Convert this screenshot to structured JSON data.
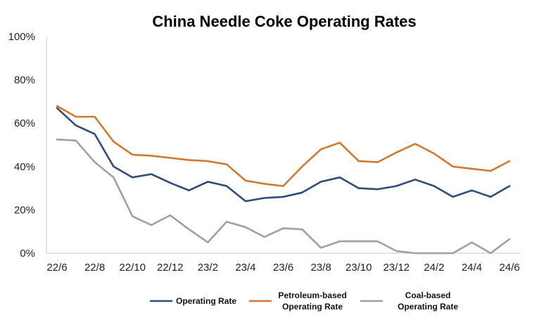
{
  "chart_data": {
    "type": "line",
    "title": "China Needle Coke Operating Rates",
    "xlabel": "",
    "ylabel": "",
    "ylim": [
      0,
      100
    ],
    "y_ticks": [
      "0%",
      "20%",
      "40%",
      "60%",
      "80%",
      "100%"
    ],
    "y_tick_values": [
      0,
      20,
      40,
      60,
      80,
      100
    ],
    "x": [
      "22/6",
      "22/7",
      "22/8",
      "22/9",
      "22/10",
      "22/11",
      "22/12",
      "23/1",
      "23/2",
      "23/3",
      "23/4",
      "23/5",
      "23/6",
      "23/7",
      "23/8",
      "23/9",
      "23/10",
      "23/11",
      "23/12",
      "24/1",
      "24/2",
      "24/3",
      "24/4",
      "24/5",
      "24/6"
    ],
    "x_tick_labels": [
      "22/6",
      "22/8",
      "22/10",
      "22/12",
      "23/2",
      "23/4",
      "23/6",
      "23/8",
      "23/10",
      "23/12",
      "24/2",
      "24/4",
      "24/6"
    ],
    "grid": false,
    "legend_position": "bottom",
    "series": [
      {
        "name": "Operating Rate",
        "color": "#2f4b7c",
        "values": [
          67,
          59,
          55,
          40,
          35,
          36.5,
          32.5,
          29,
          33,
          31,
          24,
          25.5,
          26,
          28,
          33,
          35,
          30,
          29.5,
          31,
          34,
          31,
          26,
          29,
          26,
          31
        ]
      },
      {
        "name": "Petroleum-based Operating Rate",
        "color": "#d2782f",
        "values": [
          68,
          63,
          63,
          51.5,
          45.5,
          45,
          44,
          43,
          42.5,
          41,
          33.5,
          32,
          31,
          40,
          48,
          51,
          42.5,
          42,
          46.5,
          50.5,
          46,
          40,
          39,
          38,
          42.5
        ]
      },
      {
        "name": "Coal-based Operating Rate",
        "color": "#a0a0a0",
        "values": [
          52.5,
          52,
          42,
          35,
          17,
          13,
          17.5,
          11,
          5,
          14.5,
          12,
          7.5,
          11.5,
          11,
          2.5,
          5.5,
          5.5,
          5.5,
          1,
          0,
          0,
          0,
          5,
          0,
          6.5
        ]
      }
    ]
  }
}
